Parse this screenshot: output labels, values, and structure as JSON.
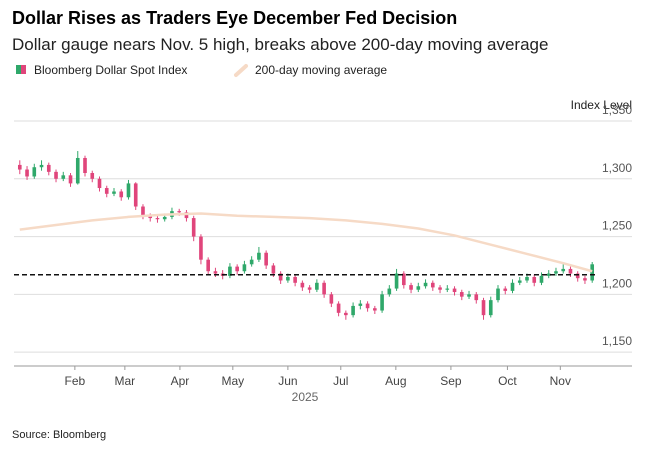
{
  "chart_data": {
    "type": "candlestick",
    "title": "Dollar Rises as Traders Eye December Fed Decision",
    "subtitle": "Dollar gauge nears Nov. 5 high, breaks above 200-day moving average",
    "ylabel": "Index Level",
    "xlabel": "2025",
    "source": "Source: Bloomberg",
    "xlim": [
      -0.8,
      79.8
    ],
    "xticks": [
      {
        "value": 7.6,
        "label": "Feb"
      },
      {
        "value": 14.5,
        "label": "Mar"
      },
      {
        "value": 22.1,
        "label": "Apr"
      },
      {
        "value": 29.4,
        "label": "May"
      },
      {
        "value": 37,
        "label": "Jun"
      },
      {
        "value": 44.3,
        "label": "Jul"
      },
      {
        "value": 51.9,
        "label": "Aug"
      },
      {
        "value": 59.5,
        "label": "Sep"
      },
      {
        "value": 67.3,
        "label": "Oct"
      },
      {
        "value": 74.6,
        "label": "Nov"
      }
    ],
    "ylim": [
      1138,
      1350
    ],
    "yticks": [
      {
        "value": 1150,
        "label": "1,150"
      },
      {
        "value": 1200,
        "label": "1,200"
      },
      {
        "value": 1250,
        "label": "1,250"
      },
      {
        "value": 1300,
        "label": "1,300"
      },
      {
        "value": 1350,
        "label": "1,350"
      }
    ],
    "grid": true,
    "reference_line": {
      "value": 1217,
      "color": "#111111",
      "dashed": true
    },
    "series": [
      {
        "name": "Bloomberg Dollar Spot Index",
        "up_color": "#2fa86a",
        "down_color": "#e0457b",
        "open": [
          1312,
          1308,
          1302,
          1310,
          1312,
          1306,
          1300,
          1303,
          1296,
          1318,
          1305,
          1300,
          1292,
          1287,
          1289,
          1284,
          1296,
          1276,
          1268,
          1266,
          1265,
          1267,
          1272,
          1271,
          1266,
          1250,
          1230,
          1220,
          1218,
          1216,
          1224,
          1220,
          1226,
          1230,
          1236,
          1225,
          1218,
          1212,
          1215,
          1210,
          1206,
          1204,
          1210,
          1200,
          1192,
          1184,
          1182,
          1190,
          1192,
          1188,
          1186,
          1200,
          1205,
          1218,
          1208,
          1204,
          1207,
          1210,
          1206,
          1204,
          1205,
          1202,
          1198,
          1200,
          1195,
          1182,
          1195,
          1205,
          1203,
          1210,
          1212,
          1215,
          1210,
          1216,
          1218,
          1220,
          1222,
          1218,
          1214,
          1212
        ],
        "high": [
          1316,
          1311,
          1313,
          1316,
          1314,
          1308,
          1306,
          1305,
          1324,
          1320,
          1307,
          1302,
          1294,
          1292,
          1291,
          1299,
          1297,
          1278,
          1270,
          1268,
          1270,
          1275,
          1274,
          1273,
          1268,
          1252,
          1232,
          1223,
          1221,
          1227,
          1226,
          1229,
          1233,
          1241,
          1238,
          1227,
          1220,
          1218,
          1217,
          1212,
          1208,
          1213,
          1212,
          1202,
          1194,
          1186,
          1193,
          1195,
          1194,
          1190,
          1203,
          1208,
          1222,
          1220,
          1210,
          1210,
          1213,
          1212,
          1208,
          1208,
          1207,
          1204,
          1203,
          1202,
          1197,
          1198,
          1208,
          1207,
          1213,
          1215,
          1218,
          1217,
          1219,
          1221,
          1223,
          1226,
          1224,
          1220,
          1216,
          1228
        ],
        "low": [
          1304,
          1299,
          1300,
          1307,
          1303,
          1297,
          1298,
          1293,
          1295,
          1302,
          1297,
          1289,
          1284,
          1285,
          1281,
          1282,
          1273,
          1265,
          1263,
          1262,
          1263,
          1265,
          1268,
          1263,
          1246,
          1226,
          1217,
          1215,
          1213,
          1214,
          1217,
          1218,
          1224,
          1228,
          1222,
          1215,
          1209,
          1210,
          1207,
          1203,
          1201,
          1202,
          1197,
          1189,
          1181,
          1178,
          1180,
          1187,
          1185,
          1183,
          1184,
          1198,
          1203,
          1205,
          1201,
          1202,
          1205,
          1203,
          1201,
          1202,
          1199,
          1195,
          1196,
          1192,
          1178,
          1180,
          1193,
          1200,
          1201,
          1208,
          1210,
          1207,
          1208,
          1214,
          1216,
          1218,
          1215,
          1211,
          1209,
          1210
        ],
        "close": [
          1308,
          1302,
          1310,
          1312,
          1306,
          1300,
          1303,
          1296,
          1318,
          1305,
          1300,
          1292,
          1287,
          1289,
          1284,
          1296,
          1276,
          1268,
          1266,
          1265,
          1267,
          1272,
          1271,
          1266,
          1250,
          1230,
          1220,
          1218,
          1216,
          1224,
          1220,
          1226,
          1230,
          1236,
          1225,
          1218,
          1212,
          1215,
          1210,
          1206,
          1204,
          1210,
          1200,
          1192,
          1184,
          1182,
          1190,
          1192,
          1188,
          1186,
          1200,
          1205,
          1218,
          1208,
          1204,
          1207,
          1210,
          1206,
          1204,
          1205,
          1202,
          1198,
          1200,
          1195,
          1182,
          1195,
          1205,
          1203,
          1210,
          1212,
          1215,
          1210,
          1216,
          1218,
          1220,
          1222,
          1218,
          1214,
          1212,
          1226
        ]
      },
      {
        "name": "200-day moving average",
        "type": "line",
        "color": "#f6dac6",
        "x": [
          0,
          5,
          10,
          15,
          20,
          25,
          30,
          35,
          40,
          45,
          50,
          55,
          60,
          65,
          70,
          75,
          79
        ],
        "values": [
          1256,
          1260,
          1264,
          1267,
          1269,
          1270,
          1268,
          1267,
          1266,
          1264,
          1261,
          1257,
          1251,
          1243,
          1235,
          1227,
          1220
        ]
      }
    ]
  }
}
